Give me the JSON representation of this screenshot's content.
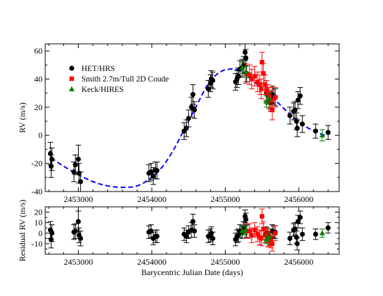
{
  "chart_data": [
    {
      "type": "scatter",
      "panel": "main",
      "ylabel": "RV (m/s)",
      "xlabel": "",
      "xlim": [
        2452550,
        2456550
      ],
      "ylim": [
        -40,
        65
      ],
      "xticks": [
        2453000,
        2454000,
        2455000,
        2456000
      ],
      "xtick_labels": [
        "2453000",
        "2454000",
        "2455000",
        "2456000"
      ],
      "yticks": [
        -40,
        -20,
        0,
        20,
        40,
        60
      ],
      "ytick_labels": [
        "-40",
        "-20",
        "0",
        "20",
        "40",
        "60"
      ],
      "legend": {
        "placement": "upper-left",
        "entries": [
          {
            "label": "HET/HRS",
            "marker": "circle",
            "color": "#000000"
          },
          {
            "label": "Smith 2.7m/Tull 2D Coude",
            "marker": "square",
            "color": "#ff0000"
          },
          {
            "label": "Keck/HIRES",
            "marker": "triangle",
            "color": "#008000"
          }
        ]
      },
      "model_curve": {
        "style": "dashed",
        "color": "#0000ff",
        "points": [
          [
            2452630,
            -16
          ],
          [
            2452800,
            -22
          ],
          [
            2453000,
            -28
          ],
          [
            2453200,
            -33
          ],
          [
            2453400,
            -36
          ],
          [
            2453600,
            -37
          ],
          [
            2453800,
            -36
          ],
          [
            2454000,
            -30
          ],
          [
            2454150,
            -22
          ],
          [
            2454300,
            -10
          ],
          [
            2454450,
            5
          ],
          [
            2454600,
            20
          ],
          [
            2454750,
            35
          ],
          [
            2454900,
            44
          ],
          [
            2455050,
            47
          ],
          [
            2455200,
            46
          ],
          [
            2455350,
            40
          ],
          [
            2455500,
            33
          ],
          [
            2455700,
            24
          ],
          [
            2455900,
            14
          ],
          [
            2456100,
            6
          ],
          [
            2456300,
            1
          ],
          [
            2456380,
            0
          ]
        ]
      },
      "series": [
        {
          "name": "HET/HRS",
          "marker": "circle",
          "color": "#000000",
          "points": [
            [
              2452620,
              -13,
              8
            ],
            [
              2452630,
              -22,
              8
            ],
            [
              2452640,
              -17,
              8
            ],
            [
              2452940,
              -26,
              7
            ],
            [
              2452960,
              -21,
              7
            ],
            [
              2453000,
              -17,
              10
            ],
            [
              2453010,
              -27,
              7
            ],
            [
              2453030,
              -33,
              7
            ],
            [
              2453960,
              -27,
              6
            ],
            [
              2453990,
              -26,
              6
            ],
            [
              2454020,
              -29,
              6
            ],
            [
              2454050,
              -25,
              6
            ],
            [
              2454070,
              -25,
              6
            ],
            [
              2454440,
              3,
              6
            ],
            [
              2454470,
              5,
              6
            ],
            [
              2454500,
              12,
              6
            ],
            [
              2454540,
              20,
              7
            ],
            [
              2454560,
              29,
              7
            ],
            [
              2454580,
              18,
              6
            ],
            [
              2454770,
              33,
              6
            ],
            [
              2454800,
              37,
              6
            ],
            [
              2454810,
              40,
              6
            ],
            [
              2454830,
              39,
              6
            ],
            [
              2455140,
              38,
              6
            ],
            [
              2455160,
              40,
              6
            ],
            [
              2455180,
              42,
              6
            ],
            [
              2455200,
              47,
              6
            ],
            [
              2455230,
              48,
              6
            ],
            [
              2455250,
              50,
              6
            ],
            [
              2455270,
              59,
              6
            ],
            [
              2455280,
              55,
              6
            ],
            [
              2455290,
              44,
              6
            ],
            [
              2455560,
              30,
              6
            ],
            [
              2455580,
              28,
              6
            ],
            [
              2455600,
              25,
              6
            ],
            [
              2455620,
              23,
              6
            ],
            [
              2455640,
              29,
              6
            ],
            [
              2455660,
              28,
              6
            ],
            [
              2455680,
              27,
              6
            ],
            [
              2455880,
              14,
              6
            ],
            [
              2455930,
              17,
              6
            ],
            [
              2455950,
              18,
              6
            ],
            [
              2455970,
              10,
              6
            ],
            [
              2455980,
              5,
              6
            ],
            [
              2455990,
              25,
              6
            ],
            [
              2456020,
              28,
              6
            ],
            [
              2456050,
              8,
              6
            ],
            [
              2456230,
              3,
              5
            ],
            [
              2456400,
              2,
              5
            ]
          ]
        },
        {
          "name": "Smith 2.7m/Tull 2D Coude",
          "marker": "square",
          "color": "#ff0000",
          "points": [
            [
              2455280,
              44,
              7
            ],
            [
              2455330,
              43,
              7
            ],
            [
              2455360,
              40,
              7
            ],
            [
              2455400,
              42,
              7
            ],
            [
              2455440,
              38,
              7
            ],
            [
              2455470,
              36,
              7
            ],
            [
              2455490,
              33,
              7
            ],
            [
              2455500,
              52,
              7
            ],
            [
              2455520,
              44,
              7
            ],
            [
              2455540,
              36,
              7
            ],
            [
              2455560,
              32,
              7
            ],
            [
              2455580,
              29,
              7
            ],
            [
              2455600,
              27,
              7
            ],
            [
              2455620,
              25,
              7
            ],
            [
              2455640,
              18,
              7
            ],
            [
              2455680,
              27,
              7
            ]
          ]
        },
        {
          "name": "Keck/HIRES",
          "marker": "triangle",
          "color": "#008000",
          "points": [
            [
              2455230,
              48,
              4
            ],
            [
              2455280,
              45,
              4
            ],
            [
              2455560,
              24,
              4
            ],
            [
              2455600,
              26,
              4
            ],
            [
              2456320,
              0,
              4
            ]
          ]
        }
      ]
    },
    {
      "type": "scatter",
      "panel": "residual",
      "ylabel": "Residual RV (m/s)",
      "xlabel": "Barycentric Julian Date (days)",
      "xlim": [
        2452550,
        2456550
      ],
      "ylim": [
        -20,
        25
      ],
      "xticks": [
        2453000,
        2454000,
        2455000,
        2456000
      ],
      "xtick_labels": [
        "2453000",
        "2454000",
        "2455000",
        "2456000"
      ],
      "yticks": [
        -10,
        0,
        10,
        20
      ],
      "ytick_labels": [
        "-10",
        "0",
        "10",
        "20"
      ],
      "series": [
        {
          "name": "HET/HRS",
          "marker": "circle",
          "color": "#000000",
          "points": [
            [
              2452620,
              3,
              8
            ],
            [
              2452630,
              -6,
              8
            ],
            [
              2452640,
              0,
              8
            ],
            [
              2452940,
              1,
              7
            ],
            [
              2452960,
              2,
              7
            ],
            [
              2453000,
              11,
              10
            ],
            [
              2453010,
              -2,
              7
            ],
            [
              2453030,
              -5,
              7
            ],
            [
              2453960,
              1,
              6
            ],
            [
              2453990,
              2,
              6
            ],
            [
              2454020,
              -5,
              6
            ],
            [
              2454050,
              -3,
              6
            ],
            [
              2454070,
              -3,
              6
            ],
            [
              2454440,
              -1,
              6
            ],
            [
              2454470,
              -3,
              6
            ],
            [
              2454500,
              1,
              6
            ],
            [
              2454540,
              3,
              7
            ],
            [
              2454560,
              11,
              7
            ],
            [
              2454580,
              2,
              6
            ],
            [
              2454770,
              -3,
              6
            ],
            [
              2454800,
              -2,
              6
            ],
            [
              2454810,
              0,
              6
            ],
            [
              2454830,
              -5,
              6
            ],
            [
              2455140,
              -6,
              6
            ],
            [
              2455160,
              -3,
              6
            ],
            [
              2455180,
              -2,
              6
            ],
            [
              2455200,
              2,
              6
            ],
            [
              2455230,
              1,
              6
            ],
            [
              2455250,
              5,
              6
            ],
            [
              2455270,
              16,
              6
            ],
            [
              2455280,
              13,
              6
            ],
            [
              2455290,
              2,
              6
            ],
            [
              2455560,
              0,
              6
            ],
            [
              2455580,
              -2,
              6
            ],
            [
              2455600,
              -4,
              6
            ],
            [
              2455620,
              -5,
              6
            ],
            [
              2455640,
              2,
              6
            ],
            [
              2455660,
              1,
              6
            ],
            [
              2455680,
              1,
              6
            ],
            [
              2455880,
              -5,
              6
            ],
            [
              2455930,
              3,
              6
            ],
            [
              2455950,
              4,
              6
            ],
            [
              2455970,
              -4,
              6
            ],
            [
              2455980,
              -10,
              6
            ],
            [
              2455990,
              11,
              6
            ],
            [
              2456020,
              15,
              6
            ],
            [
              2456050,
              -1,
              6
            ],
            [
              2456230,
              -1,
              5
            ],
            [
              2456400,
              5,
              5
            ]
          ]
        },
        {
          "name": "Smith 2.7m/Tull 2D Coude",
          "marker": "square",
          "color": "#ff0000",
          "points": [
            [
              2455280,
              2,
              7
            ],
            [
              2455330,
              2,
              7
            ],
            [
              2455360,
              -2,
              7
            ],
            [
              2455400,
              3,
              7
            ],
            [
              2455440,
              -1,
              7
            ],
            [
              2455470,
              -4,
              7
            ],
            [
              2455490,
              -5,
              7
            ],
            [
              2455500,
              16,
              7
            ],
            [
              2455520,
              4,
              7
            ],
            [
              2455540,
              -2,
              7
            ],
            [
              2455560,
              -2,
              7
            ],
            [
              2455580,
              -6,
              7
            ],
            [
              2455600,
              -5,
              7
            ],
            [
              2455620,
              -7,
              7
            ],
            [
              2455640,
              -10,
              7
            ],
            [
              2455680,
              0,
              7
            ]
          ]
        },
        {
          "name": "Keck/HIRES",
          "marker": "triangle",
          "color": "#008000",
          "points": [
            [
              2455230,
              2,
              4
            ],
            [
              2455280,
              3,
              4
            ],
            [
              2455560,
              -6,
              4
            ],
            [
              2455600,
              -4,
              4
            ],
            [
              2456320,
              0,
              4
            ]
          ]
        }
      ]
    }
  ]
}
